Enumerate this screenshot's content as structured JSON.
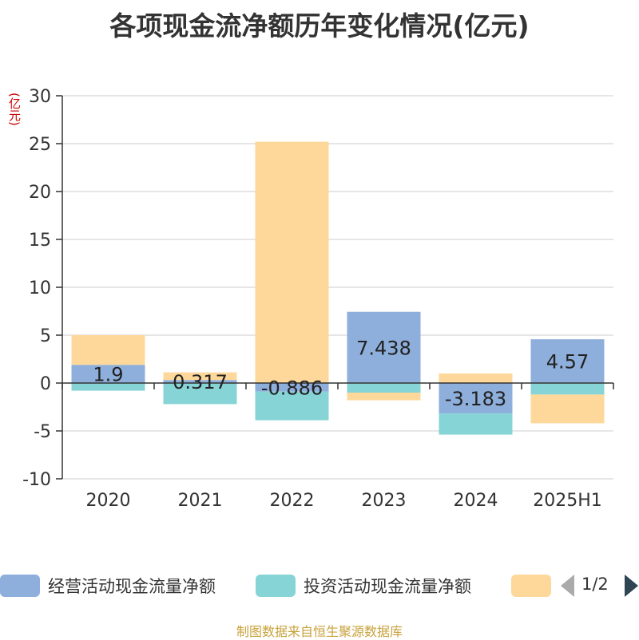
{
  "title": "各项现金流净额历年变化情况(亿元)",
  "unit_label": "(亿元)",
  "source": "制图数据来自恒生聚源数据库",
  "legend": {
    "items": [
      {
        "label": "经营活动现金流量净额",
        "color": "#8eaedb"
      },
      {
        "label": "投资活动现金流量净额",
        "color": "#86d4d6"
      },
      {
        "label": "",
        "color": "#fdd89a"
      }
    ],
    "page": "1/2"
  },
  "chart_data": {
    "type": "bar",
    "stacked": true,
    "categories": [
      "2020",
      "2021",
      "2022",
      "2023",
      "2024",
      "2025H1"
    ],
    "ylim": [
      -10,
      30
    ],
    "yticks": [
      -10,
      -5,
      0,
      5,
      10,
      15,
      20,
      25,
      30
    ],
    "grid": true,
    "series": [
      {
        "name": "经营活动现金流量净额",
        "color": "#8eaedb",
        "values": [
          1.9,
          0.317,
          -0.886,
          7.438,
          -3.183,
          4.57
        ],
        "labels": [
          "1.9",
          "0.317",
          "-0.886",
          "7.438",
          "-3.183",
          "4.57"
        ]
      },
      {
        "name": "投资活动现金流量净额",
        "color": "#86d4d6",
        "values": [
          -0.8,
          -2.2,
          -3.0,
          -1.0,
          -2.2,
          -1.2
        ]
      },
      {
        "color": "#fdd89a",
        "values": [
          3.1,
          0.8,
          25.2,
          -0.8,
          1.0,
          -3.0
        ]
      }
    ]
  }
}
